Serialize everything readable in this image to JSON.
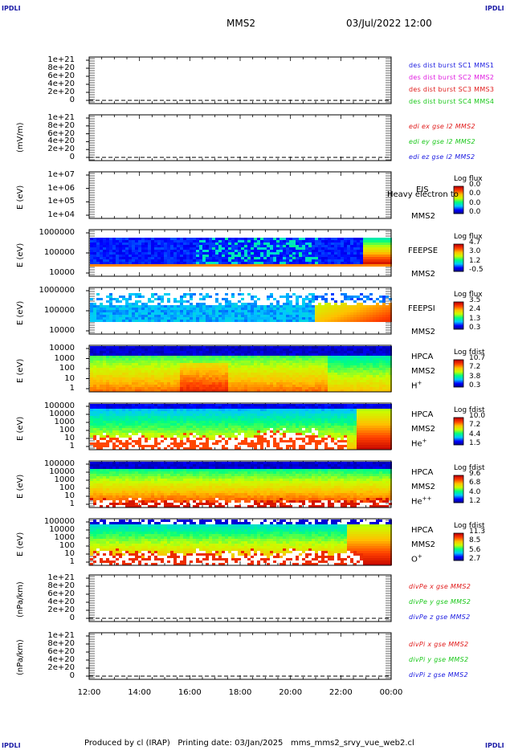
{
  "header": {
    "corner_label": "IPDLI",
    "spacecraft": "MMS2",
    "datetime": "03/Jul/2022 12:00"
  },
  "footer": {
    "produced_by": "Produced by cl (IRAP)",
    "printing_date": "Printing date: 03/Jan/2025",
    "filename": "mms_mms2_srvy_vue_web2.cl"
  },
  "colors": {
    "blue": "#1a1ae0",
    "magenta": "#e01ae0",
    "red": "#e01a1a",
    "green": "#1ac81a",
    "spectrogram_scale": [
      "#00007f",
      "#0000ff",
      "#00c8ff",
      "#00ff80",
      "#c8ff00",
      "#ffc000",
      "#ff4000",
      "#c00000"
    ]
  },
  "chart_data": [
    {
      "type": "line",
      "panel": "dist_counts",
      "y_ticks": [
        "1e+21",
        "8e+20",
        "6e+20",
        "4e+20",
        "2e+20",
        "0"
      ],
      "ylim": [
        0,
        1e+21
      ],
      "ylabel": "",
      "series": [
        {
          "name": "des dist burst SC1 MMS1",
          "color": "#1a1ae0",
          "values": []
        },
        {
          "name": "des dist burst SC2 MMS2",
          "color": "#e01ae0",
          "values": []
        },
        {
          "name": "des dist burst SC3 MMS3",
          "color": "#e01a1a",
          "values": []
        },
        {
          "name": "des dist burst SC4 MMS4",
          "color": "#1ac81a",
          "values": []
        }
      ]
    },
    {
      "type": "line",
      "panel": "edi_e",
      "y_ticks": [
        "1e+21",
        "8e+20",
        "6e+20",
        "4e+20",
        "2e+20",
        "0"
      ],
      "ylim": [
        0,
        1e+21
      ],
      "ylabel": "(mV/m)",
      "series": [
        {
          "name": "edi ex gse l2 MMS2",
          "color": "#e01a1a",
          "values": []
        },
        {
          "name": "edi ey gse l2 MMS2",
          "color": "#1ac81a",
          "values": []
        },
        {
          "name": "edi ez gse l2 MMS2",
          "color": "#1a1ae0",
          "values": []
        }
      ]
    },
    {
      "type": "heatmap",
      "panel": "eis",
      "y_scale": "log",
      "y_ticks": [
        "1e+07",
        "1e+06",
        "1e+05",
        "1e+04"
      ],
      "ylabel": "E (eV)",
      "labels": [
        "EIS",
        "MMS2"
      ],
      "overlay_text": "Heavy electron to",
      "colorbar_title": "Log flux",
      "colorbar_ticks": [
        "0.0",
        "0.0",
        "0.0",
        "0.0"
      ],
      "empty": true
    },
    {
      "type": "heatmap",
      "panel": "feeps_e",
      "y_scale": "log",
      "y_ticks": [
        "1000000",
        "100000",
        "10000"
      ],
      "ylabel": "E (eV)",
      "labels": [
        "FEEPSE",
        "MMS2"
      ],
      "colorbar_title": "Log flux",
      "colorbar_ticks": [
        "4.7",
        "3.0",
        "1.2",
        "-0.5"
      ]
    },
    {
      "type": "heatmap",
      "panel": "feeps_i",
      "y_scale": "log",
      "y_ticks": [
        "1000000",
        "100000",
        "10000"
      ],
      "ylabel": "E (eV)",
      "labels": [
        "FEEPSI",
        "MMS2"
      ],
      "colorbar_title": "Log flux",
      "colorbar_ticks": [
        "3.5",
        "2.4",
        "1.3",
        "0.3"
      ]
    },
    {
      "type": "heatmap",
      "panel": "hpca_h",
      "y_scale": "log",
      "y_ticks": [
        "10000",
        "1000",
        "100",
        "10",
        "1"
      ],
      "ylabel": "E (eV)",
      "labels": [
        "HPCA",
        "MMS2",
        "H+"
      ],
      "colorbar_title": "Log fdist",
      "colorbar_ticks": [
        "10.7",
        "7.2",
        "3.8",
        "0.3"
      ]
    },
    {
      "type": "heatmap",
      "panel": "hpca_he",
      "y_scale": "log",
      "y_ticks": [
        "100000",
        "10000",
        "1000",
        "100",
        "10",
        "1"
      ],
      "ylabel": "E (eV)",
      "labels": [
        "HPCA",
        "MMS2",
        "He+"
      ],
      "colorbar_title": "Log fdist",
      "colorbar_ticks": [
        "10.0",
        "7.2",
        "4.4",
        "1.5"
      ]
    },
    {
      "type": "heatmap",
      "panel": "hpca_hepp",
      "y_scale": "log",
      "y_ticks": [
        "100000",
        "10000",
        "1000",
        "100",
        "10",
        "1"
      ],
      "ylabel": "E (eV)",
      "labels": [
        "HPCA",
        "MMS2",
        "He++"
      ],
      "colorbar_title": "Log fdist",
      "colorbar_ticks": [
        "9.6",
        "6.8",
        "4.0",
        "1.2"
      ]
    },
    {
      "type": "heatmap",
      "panel": "hpca_o",
      "y_scale": "log",
      "y_ticks": [
        "100000",
        "10000",
        "1000",
        "100",
        "10",
        "1"
      ],
      "ylabel": "E (eV)",
      "labels": [
        "HPCA",
        "MMS2",
        "O+"
      ],
      "colorbar_title": "Log fdist",
      "colorbar_ticks": [
        "11.3",
        "8.5",
        "5.6",
        "2.7"
      ]
    },
    {
      "type": "line",
      "panel": "divpe",
      "y_ticks": [
        "1e+21",
        "8e+20",
        "6e+20",
        "4e+20",
        "2e+20",
        "0"
      ],
      "ylim": [
        0,
        1e+21
      ],
      "ylabel": "(nPa/km)",
      "series": [
        {
          "name": "divPe x gse MMS2",
          "color": "#e01a1a",
          "values": []
        },
        {
          "name": "divPe y gse MMS2",
          "color": "#1ac81a",
          "values": []
        },
        {
          "name": "divPe z gse MMS2",
          "color": "#1a1ae0",
          "values": []
        }
      ]
    },
    {
      "type": "line",
      "panel": "divpi",
      "y_ticks": [
        "1e+21",
        "8e+20",
        "6e+20",
        "4e+20",
        "2e+20",
        "0"
      ],
      "ylim": [
        0,
        1e+21
      ],
      "ylabel": "(nPa/km)",
      "series": [
        {
          "name": "divPi x gse MMS2",
          "color": "#e01a1a",
          "values": []
        },
        {
          "name": "divPi y gse MMS2",
          "color": "#1ac81a",
          "values": []
        },
        {
          "name": "divPi z gse MMS2",
          "color": "#1a1ae0",
          "values": []
        }
      ]
    }
  ],
  "x_axis": {
    "ticks": [
      "12:00",
      "14:00",
      "16:00",
      "18:00",
      "20:00",
      "22:00",
      "00:00"
    ]
  }
}
